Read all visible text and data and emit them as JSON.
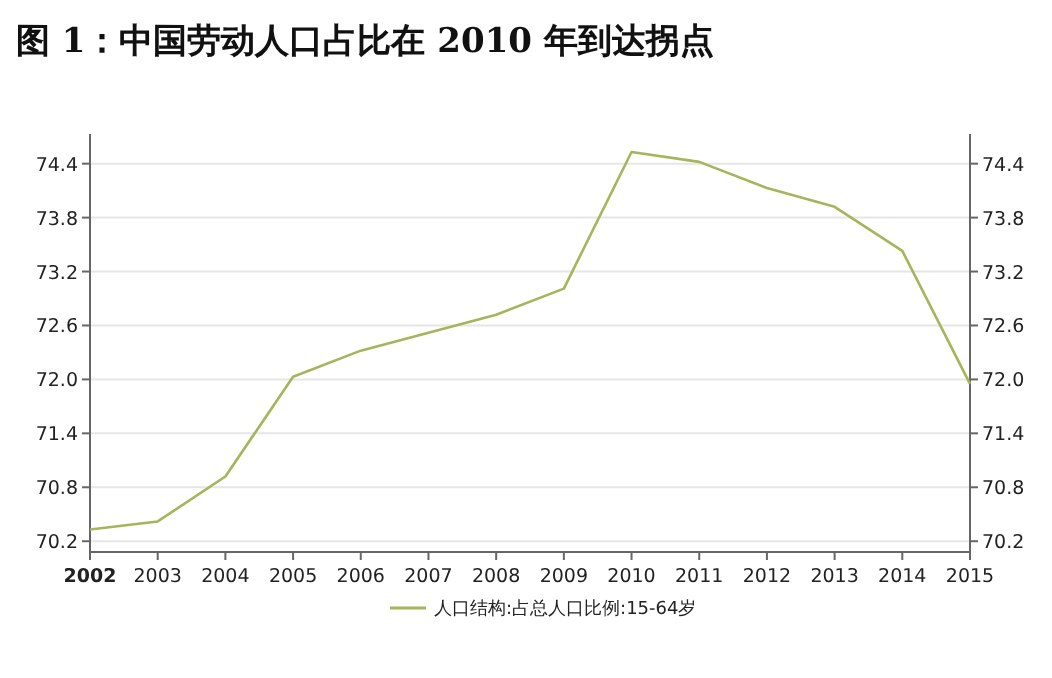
{
  "chart_data": {
    "type": "line",
    "title": "图 1：中国劳动人口占比在 2010 年到达拐点",
    "x": [
      2002,
      2003,
      2004,
      2005,
      2006,
      2007,
      2008,
      2009,
      2010,
      2011,
      2012,
      2013,
      2014,
      2015
    ],
    "series": [
      {
        "name": "人口结构:占总人口比例:15-64岁",
        "color": "#a4b55a",
        "values": [
          70.33,
          70.42,
          70.92,
          72.03,
          72.32,
          72.52,
          72.72,
          73.01,
          74.53,
          74.42,
          74.13,
          73.92,
          73.43,
          71.95
        ]
      }
    ],
    "xlim": [
      2002,
      2015
    ],
    "xticks": [
      2002,
      2003,
      2004,
      2005,
      2006,
      2007,
      2008,
      2009,
      2010,
      2011,
      2012,
      2013,
      2014,
      2015
    ],
    "ylim": [
      70.08,
      74.73
    ],
    "yticks": [
      {
        "value": 70.2,
        "label": "70.2"
      },
      {
        "value": 70.8,
        "label": "70.8"
      },
      {
        "value": 71.4,
        "label": "71.4"
      },
      {
        "value": 72.0,
        "label": "72.0"
      },
      {
        "value": 72.6,
        "label": "72.6"
      },
      {
        "value": 73.2,
        "label": "73.2"
      },
      {
        "value": 73.8,
        "label": "73.8"
      },
      {
        "value": 74.4,
        "label": "74.4"
      }
    ],
    "y2lim": [
      70.08,
      74.73
    ],
    "y2ticks": [
      {
        "value": 70.2,
        "label": "70.2"
      },
      {
        "value": 70.8,
        "label": "70.8"
      },
      {
        "value": 71.4,
        "label": "71.4"
      },
      {
        "value": 72.0,
        "label": "72.0"
      },
      {
        "value": 72.6,
        "label": "72.6"
      },
      {
        "value": 73.2,
        "label": "73.2"
      },
      {
        "value": 73.8,
        "label": "73.8"
      },
      {
        "value": 74.4,
        "label": "74.4"
      }
    ],
    "grid": "y",
    "legend": "bottom",
    "marker": "none",
    "line_style": "solid"
  }
}
